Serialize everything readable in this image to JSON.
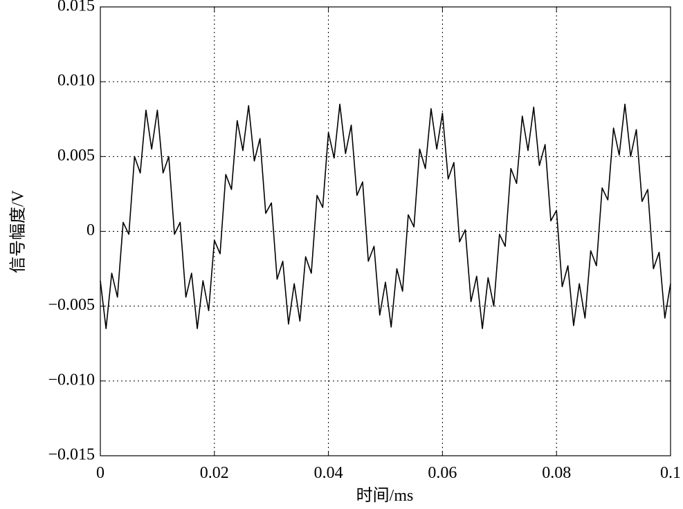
{
  "chart_data": {
    "type": "line",
    "xlabel": "时间/ms",
    "ylabel": "信号幅度/V",
    "x": [
      0,
      0.001,
      0.002,
      0.003,
      0.004,
      0.005,
      0.006,
      0.007,
      0.008,
      0.009,
      0.01,
      0.011,
      0.012,
      0.013,
      0.014,
      0.015,
      0.016,
      0.017,
      0.018,
      0.019,
      0.02,
      0.021,
      0.022,
      0.023,
      0.024,
      0.025,
      0.026,
      0.027,
      0.028,
      0.029,
      0.03,
      0.031,
      0.032,
      0.033,
      0.034,
      0.035,
      0.036,
      0.037,
      0.038,
      0.039,
      0.04,
      0.041,
      0.042,
      0.043,
      0.044,
      0.045,
      0.046,
      0.047,
      0.048,
      0.049,
      0.05,
      0.051,
      0.052,
      0.053,
      0.054,
      0.055,
      0.056,
      0.057,
      0.058,
      0.059,
      0.06,
      0.061,
      0.062,
      0.063,
      0.064,
      0.065,
      0.066,
      0.067,
      0.068,
      0.069,
      0.07,
      0.071,
      0.072,
      0.073,
      0.074,
      0.075,
      0.076,
      0.077,
      0.078,
      0.079,
      0.08,
      0.081,
      0.082,
      0.083,
      0.084,
      0.085,
      0.086,
      0.087,
      0.088,
      0.089,
      0.09,
      0.091,
      0.092,
      0.093,
      0.094,
      0.095,
      0.096,
      0.097,
      0.098,
      0.099,
      0.1
    ],
    "series": [
      {
        "color": "#000000",
        "values": [
          -0.0033,
          -0.0065,
          -0.0028,
          -0.0044,
          0.0006,
          -0.0002,
          0.005,
          0.0039,
          0.0081,
          0.0055,
          0.0081,
          0.0039,
          0.005,
          -0.0002,
          0.0006,
          -0.0044,
          -0.0028,
          -0.0065,
          -0.0033,
          -0.0053,
          -0.0006,
          -0.0015,
          0.0038,
          0.0028,
          0.0074,
          0.0054,
          0.0084,
          0.0047,
          0.0062,
          0.0012,
          0.0019,
          -0.0032,
          -0.002,
          -0.0062,
          -0.0035,
          -0.006,
          -0.0017,
          -0.0028,
          0.0024,
          0.0016,
          0.0066,
          0.0049,
          0.0085,
          0.0052,
          0.0071,
          0.0024,
          0.0033,
          -0.002,
          -0.001,
          -0.0056,
          -0.0034,
          -0.0064,
          -0.0025,
          -0.004,
          0.0011,
          0.0003,
          0.0055,
          0.0042,
          0.0082,
          0.0055,
          0.0079,
          0.0035,
          0.0046,
          -0.0007,
          0.0001,
          -0.0047,
          -0.003,
          -0.0065,
          -0.0031,
          -0.005,
          -0.0002,
          -0.001,
          0.0042,
          0.0032,
          0.0077,
          0.0054,
          0.0083,
          0.0044,
          0.0058,
          0.0007,
          0.0014,
          -0.0037,
          -0.0023,
          -0.0063,
          -0.0035,
          -0.0058,
          -0.0013,
          -0.0023,
          0.0029,
          0.0021,
          0.0069,
          0.0051,
          0.0085,
          0.005,
          0.0068,
          0.002,
          0.0028,
          -0.0025,
          -0.0014,
          -0.0058,
          -0.0035
        ]
      }
    ],
    "xlim": [
      0,
      0.1
    ],
    "xticks": [
      0,
      0.02,
      0.04,
      0.06,
      0.08,
      0.1
    ],
    "ylim": [
      -0.015,
      0.015
    ],
    "yticks": [
      {
        "value": -0.015,
        "label": "−0.015"
      },
      {
        "value": -0.01,
        "label": "−0.010"
      },
      {
        "value": -0.005,
        "label": "−0.005"
      },
      0,
      0.005,
      {
        "value": 0.01,
        "label": "0.010"
      },
      0.015
    ],
    "grid": true
  }
}
